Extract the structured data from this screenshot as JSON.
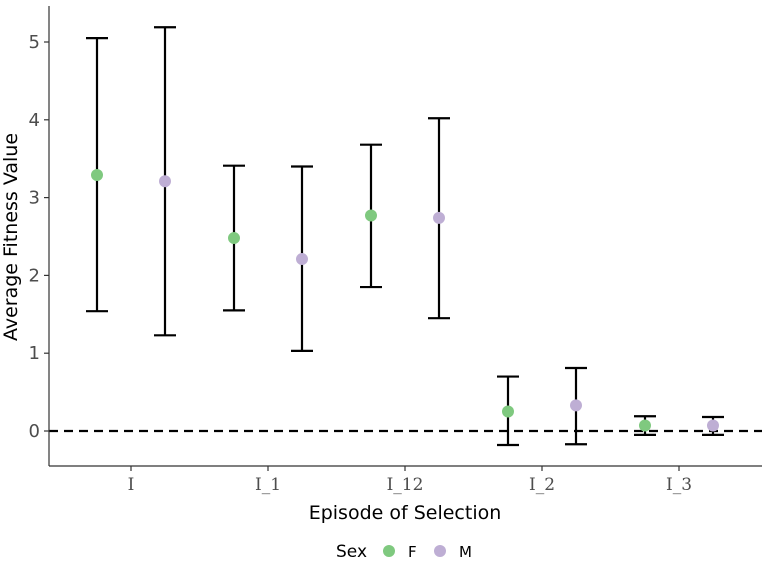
{
  "chart_data": {
    "type": "scatter",
    "title": "",
    "xlabel": "Episode of Selection",
    "ylabel": "Average Fitness Value",
    "categories": [
      "I",
      "I_1",
      "I_12",
      "I_2",
      "I_3"
    ],
    "yticks": [
      "0",
      "1",
      "2",
      "3",
      "4",
      "5"
    ],
    "ylim": [
      -0.45,
      5.45
    ],
    "grid": false,
    "reference_line": {
      "y": 0,
      "style": "dashed",
      "color": "#000000"
    },
    "error_bars": true,
    "legend": {
      "title": "Sex",
      "placement": "bottom",
      "entries": [
        {
          "label": "F",
          "color": "#7fc97f"
        },
        {
          "label": "M",
          "color": "#beaed4"
        }
      ]
    },
    "series": [
      {
        "name": "F",
        "color": "#7fc97f",
        "values": [
          3.29,
          2.48,
          2.77,
          0.25,
          0.07
        ],
        "lower": [
          1.54,
          1.55,
          1.85,
          -0.18,
          -0.05
        ],
        "upper": [
          5.05,
          3.41,
          3.68,
          0.7,
          0.19
        ]
      },
      {
        "name": "M",
        "color": "#beaed4",
        "values": [
          3.21,
          2.21,
          2.74,
          0.33,
          0.07
        ],
        "lower": [
          1.23,
          1.03,
          1.45,
          -0.17,
          -0.05
        ],
        "upper": [
          5.19,
          3.4,
          4.02,
          0.81,
          0.18
        ]
      }
    ]
  }
}
